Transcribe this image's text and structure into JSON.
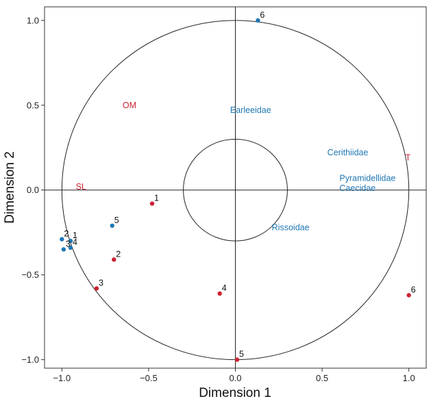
{
  "chart_data": {
    "type": "scatter",
    "xlabel": "Dimension 1",
    "ylabel": "Dimension 2",
    "xlim": [
      -1.1,
      1.1
    ],
    "ylim": [
      -1.05,
      1.08
    ],
    "x_ticks": [
      -1.0,
      -0.5,
      0.0,
      0.5,
      1.0
    ],
    "y_ticks": [
      -1.0,
      -0.5,
      0.0,
      0.5,
      1.0
    ],
    "x_tick_labels": [
      "−1.0",
      "−0.5",
      "0.0",
      "0.5",
      "1.0"
    ],
    "y_tick_labels": [
      "−1.0",
      "−0.5",
      "0.0",
      "0.5",
      "1.0"
    ],
    "grid": false,
    "outer_circle_radius": 1.0,
    "inner_circle_radius": 0.3,
    "colors": {
      "blue": "#1f77b4",
      "red": "#cc2233"
    },
    "series": [
      {
        "color": "#1f77b4",
        "points": [
          {
            "label": "1",
            "x": -0.95,
            "y": -0.3
          },
          {
            "label": "2",
            "x": -1.0,
            "y": -0.29
          },
          {
            "label": "3",
            "x": -0.99,
            "y": -0.35
          },
          {
            "label": "4",
            "x": -0.95,
            "y": -0.34
          },
          {
            "label": "5",
            "x": -0.71,
            "y": -0.21
          },
          {
            "label": "6",
            "x": 0.13,
            "y": 1.0
          }
        ]
      },
      {
        "color": "#cc2233",
        "points": [
          {
            "label": "1",
            "x": -0.48,
            "y": -0.08
          },
          {
            "label": "2",
            "x": -0.7,
            "y": -0.41
          },
          {
            "label": "3",
            "x": -0.8,
            "y": -0.58
          },
          {
            "label": "4",
            "x": -0.09,
            "y": -0.61
          },
          {
            "label": "5",
            "x": 0.01,
            "y": -1.0
          },
          {
            "label": "6",
            "x": 1.0,
            "y": -0.62
          }
        ]
      }
    ],
    "variables": [
      {
        "label": "OM",
        "x": -0.65,
        "y": 0.5,
        "color": "#cc2233"
      },
      {
        "label": "SL",
        "x": -0.92,
        "y": 0.02,
        "color": "#cc2233"
      },
      {
        "label": "T",
        "x": 0.98,
        "y": 0.19,
        "color": "#cc2233"
      },
      {
        "label": "Earleeidae",
        "x": -0.03,
        "y": 0.47,
        "color": "#1f77b4"
      },
      {
        "label": "Cerithiidae",
        "x": 0.53,
        "y": 0.22,
        "color": "#1f77b4"
      },
      {
        "label": "Pyramidellidae",
        "x": 0.6,
        "y": 0.07,
        "color": "#1f77b4"
      },
      {
        "label": "Caecidae",
        "x": 0.6,
        "y": 0.01,
        "color": "#1f77b4"
      },
      {
        "label": "Rissoidae",
        "x": 0.21,
        "y": -0.22,
        "color": "#1f77b4"
      }
    ]
  }
}
